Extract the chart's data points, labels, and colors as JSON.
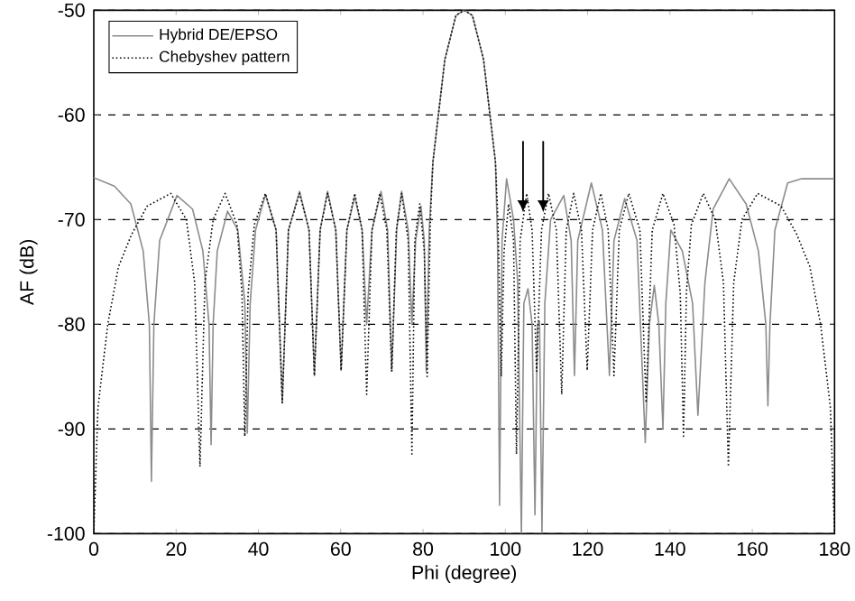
{
  "chart_data": {
    "type": "line",
    "xlabel": "Phi (degree)",
    "ylabel": "AF (dB)",
    "xlim": [
      0,
      180
    ],
    "ylim": [
      -100,
      -50
    ],
    "xticks": [
      0,
      20,
      40,
      60,
      80,
      100,
      120,
      140,
      160,
      180
    ],
    "yticks": [
      -100,
      -90,
      -80,
      -70,
      -60,
      -50
    ],
    "grid": "y",
    "legend": "top left",
    "series": [
      {
        "name": "Hybrid DE/EPSO",
        "color": "#8c8c8c",
        "line_style": "solid",
        "x": [
          0,
          5,
          9,
          12,
          13.5,
          14,
          14.6,
          16,
          20.2,
          24,
          26.5,
          28,
          28.5,
          29,
          30,
          32.5,
          35,
          36.7,
          37.3,
          38,
          39.3,
          41.7,
          44.3,
          45.8,
          47.3,
          50,
          52.3,
          53.6,
          55,
          56.8,
          58.8,
          60.1,
          61.5,
          63.4,
          65.2,
          66.3,
          67.6,
          69.8,
          71.4,
          72.4,
          73.6,
          74.8,
          76.4,
          77.3,
          78.2,
          79.5,
          80.3,
          80.8,
          81.5,
          82.4,
          85.3,
          88,
          90,
          92,
          94.7,
          97.6,
          98.1,
          98.6,
          99.2,
          100.3,
          102,
          103,
          103.9,
          104.5,
          105.5,
          106.5,
          107.2,
          107.8,
          108.3,
          108.9,
          109.6,
          111,
          114.2,
          116,
          116.8,
          117.6,
          120.9,
          123.6,
          125.3,
          126.4,
          129,
          132,
          134,
          135,
          136.2,
          137.3,
          138.3,
          139,
          140.2,
          143,
          145.5,
          146.8,
          148.5,
          150.5,
          154.4,
          158.5,
          161.5,
          163.3,
          163.8,
          164.3,
          165.5,
          168.6,
          172,
          180
        ],
        "values": [
          -66,
          -66.8,
          -68.5,
          -73,
          -80,
          -95,
          -80,
          -72,
          -67.7,
          -69,
          -73,
          -80,
          -91.5,
          -80,
          -73,
          -69.2,
          -71,
          -78,
          -90.4,
          -78,
          -71,
          -67.6,
          -71,
          -87.5,
          -71,
          -67.3,
          -71,
          -84.9,
          -71,
          -67.3,
          -71,
          -84.4,
          -71,
          -67.8,
          -71,
          -80,
          -71,
          -67.3,
          -71,
          -84.5,
          -71,
          -67.3,
          -71,
          -80,
          -72,
          -68.7,
          -72,
          -84.5,
          -71,
          -64.5,
          -54.7,
          -50.5,
          -50,
          -50.5,
          -54.7,
          -64.5,
          -72,
          -97.3,
          -72,
          -66.1,
          -70,
          -76,
          -100,
          -78,
          -76.6,
          -80,
          -98.2,
          -80,
          -79.7,
          -100,
          -78,
          -70,
          -67.7,
          -72,
          -84.9,
          -72,
          -66.5,
          -71,
          -84.9,
          -72,
          -68,
          -72,
          -91.3,
          -80,
          -76.3,
          -80,
          -90,
          -78,
          -71,
          -73,
          -78,
          -88.7,
          -76,
          -69,
          -66.1,
          -68.5,
          -73,
          -80,
          -87.8,
          -80,
          -71,
          -66.5,
          -66.1,
          -66.1
        ]
      },
      {
        "name": "Chebyshev pattern",
        "color": "#000000",
        "line_style": "dotted",
        "x": [
          0,
          1,
          3.4,
          6,
          9.2,
          13,
          18.7,
          22.5,
          24.5,
          25.8,
          27,
          29,
          31.9,
          34.8,
          36,
          36.7,
          37.5,
          39,
          41.7,
          44.3,
          45.8,
          47.3,
          50,
          52.3,
          53.6,
          55,
          56.8,
          58.8,
          60.1,
          61.5,
          63.4,
          65.2,
          66.3,
          67.6,
          69.5,
          71.2,
          72.4,
          73.5,
          74.8,
          76.4,
          77.3,
          78,
          79.2,
          80.3,
          81,
          81.8,
          82.4,
          85.3,
          88,
          90,
          92,
          94.7,
          97.6,
          98.2,
          99,
          99.7,
          100.8,
          102,
          102.7,
          103.6,
          105.2,
          106.5,
          107.6,
          108.8,
          110.5,
          112.4,
          113.7,
          114.8,
          116.6,
          118.5,
          119.9,
          121.2,
          123.2,
          125,
          126.4,
          127.7,
          130,
          132.7,
          134.2,
          135.7,
          138.3,
          141,
          142.5,
          143.3,
          144,
          145.2,
          148.1,
          151,
          153,
          154.2,
          155.5,
          157.5,
          161.3,
          167,
          170.8,
          174,
          176.6,
          179,
          180
        ],
        "values": [
          -100,
          -88,
          -80,
          -74.5,
          -71.4,
          -68.7,
          -67.5,
          -70,
          -76,
          -93.6,
          -76,
          -70,
          -67.5,
          -70.5,
          -77,
          -90.7,
          -77,
          -70.5,
          -67.5,
          -71,
          -87.5,
          -71,
          -67.5,
          -71,
          -84.9,
          -71,
          -67.5,
          -71,
          -84.4,
          -71,
          -67.5,
          -71,
          -86.7,
          -71,
          -67.5,
          -71,
          -84.5,
          -71,
          -67.5,
          -72,
          -92.4,
          -72,
          -68.5,
          -73,
          -85,
          -70,
          -64.5,
          -54.7,
          -50.5,
          -50,
          -50.5,
          -54.7,
          -64.5,
          -70,
          -85,
          -73,
          -68.5,
          -72,
          -92.4,
          -72,
          -67.5,
          -71,
          -84.5,
          -71,
          -67.5,
          -71,
          -86.7,
          -71,
          -67.5,
          -71,
          -84.4,
          -71,
          -67.5,
          -71,
          -84.9,
          -71,
          -67.5,
          -71,
          -87.5,
          -71,
          -67.5,
          -70.5,
          -77,
          -90.7,
          -77,
          -70.5,
          -67.5,
          -70,
          -76,
          -93.6,
          -76,
          -70,
          -67.5,
          -68.7,
          -71.4,
          -74.5,
          -80,
          -88,
          -100
        ]
      }
    ]
  }
}
